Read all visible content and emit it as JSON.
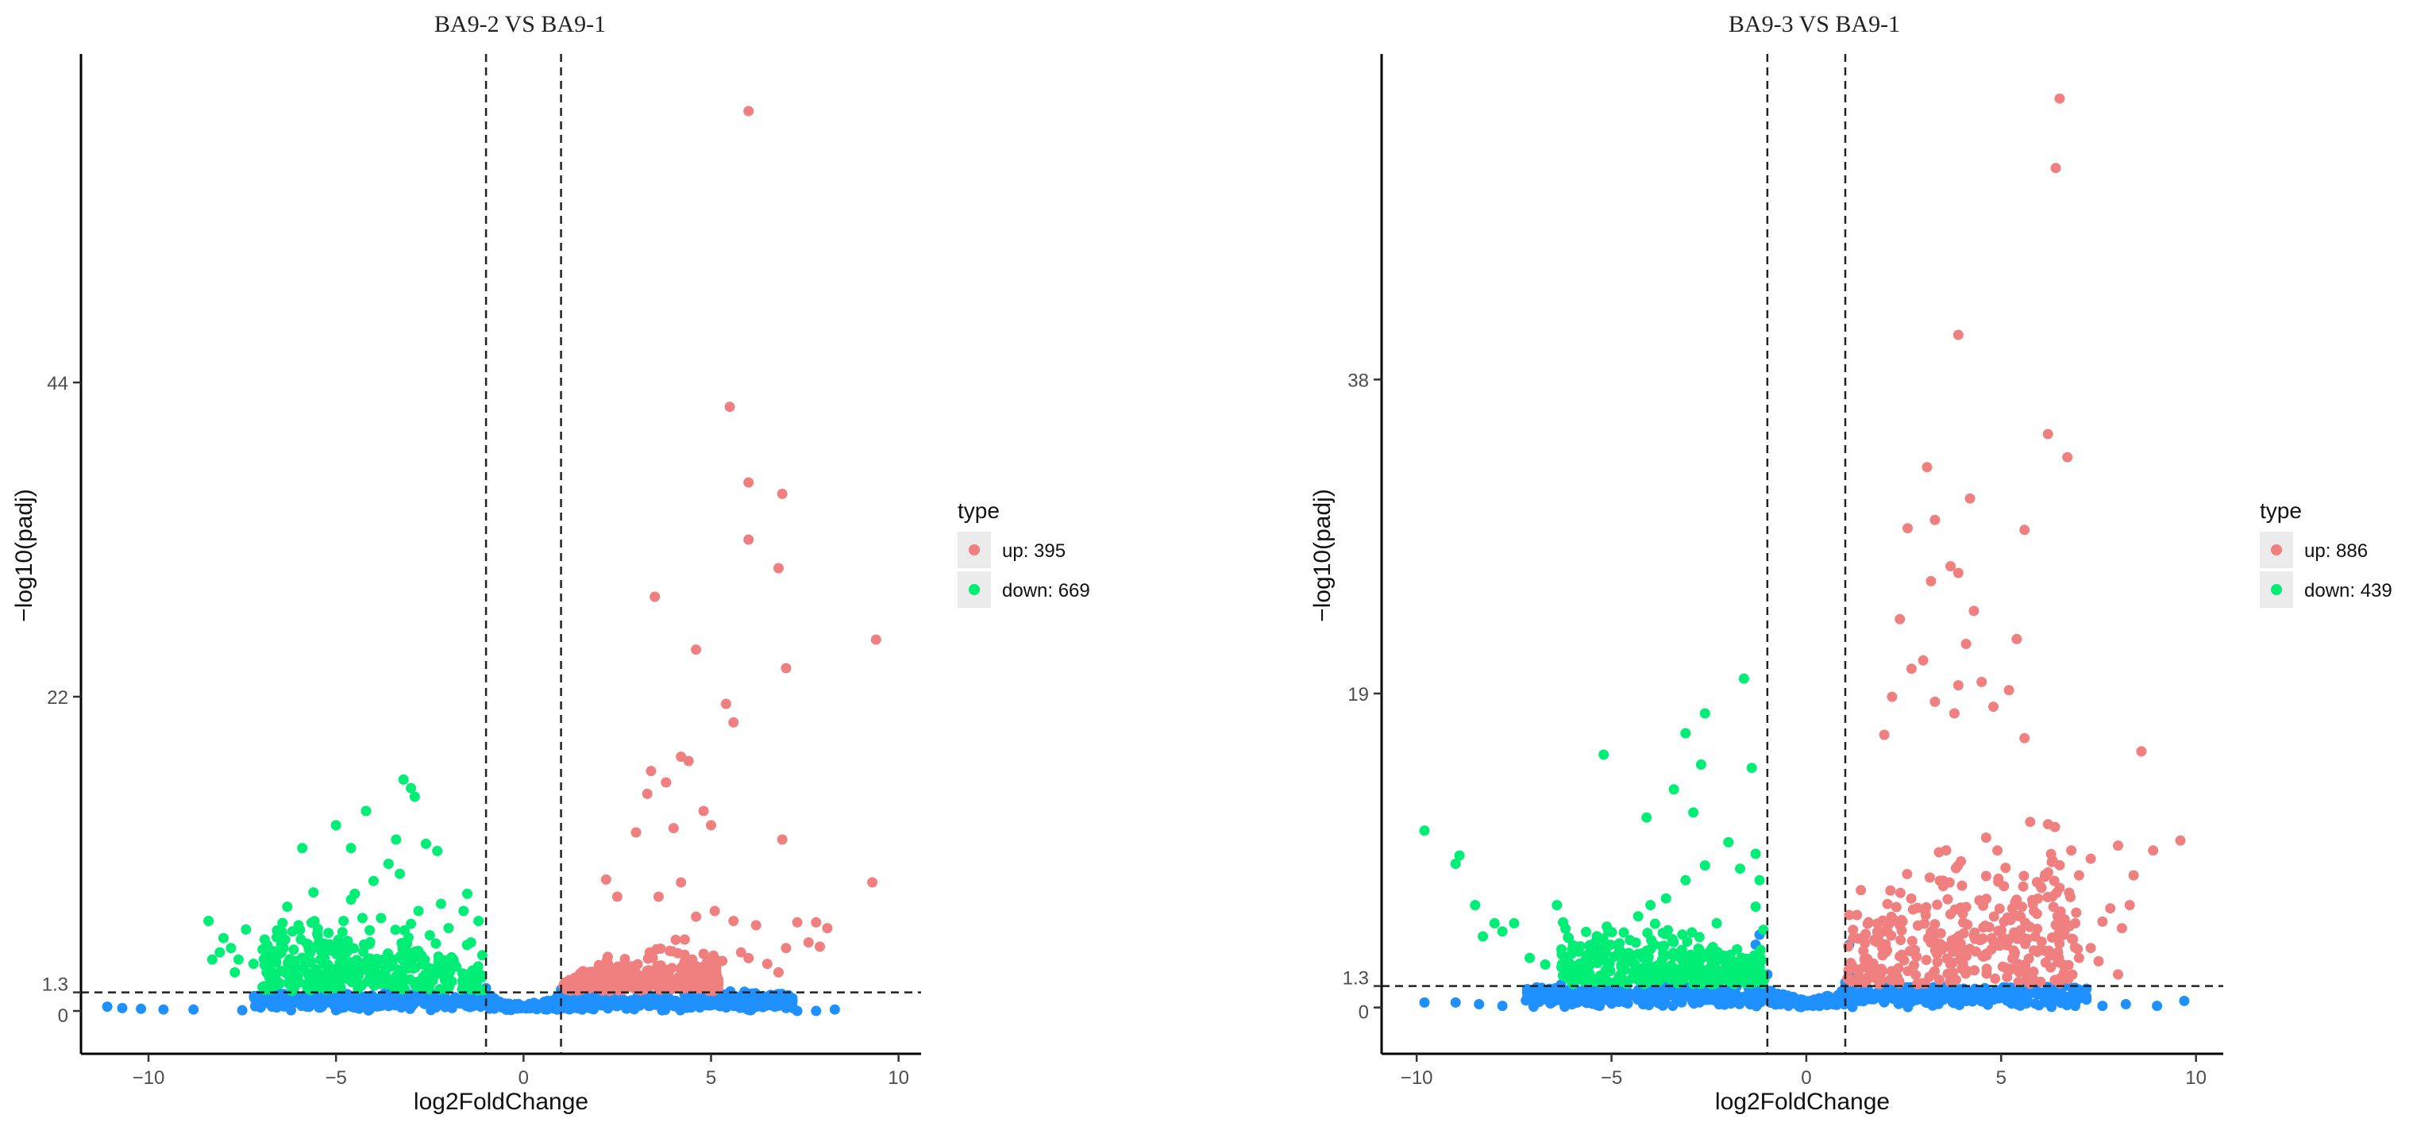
{
  "colors": {
    "up": "#F08080",
    "down": "#00EE76",
    "normal": "#1E90FF",
    "axis": "#000000",
    "legend_key_bg": "#EBEBEB",
    "threshold_line": "#222222"
  },
  "chart_data": [
    {
      "type": "scatter",
      "title": "BA9-2 VS BA9-1",
      "xlabel": "log2FoldChange",
      "ylabel": "−log10(padj)",
      "xlim": [
        -11.8,
        10.6
      ],
      "ylim": [
        -3,
        67
      ],
      "x_ticks": [
        -10,
        -5,
        0,
        5,
        10
      ],
      "x_tick_labels": [
        "−10",
        "−5",
        "0",
        "5",
        "10"
      ],
      "y_ticks": [
        0,
        1.3,
        22,
        44
      ],
      "y_tick_labels": [
        "0",
        "1.3",
        "22",
        "44"
      ],
      "grid": false,
      "thresholds": {
        "x": [
          -1,
          1
        ],
        "y": 1.3
      },
      "legend": {
        "title": "type",
        "position": "right",
        "entries": [
          {
            "key": "up",
            "label": "up: 395"
          },
          {
            "key": "down",
            "label": "down: 669"
          }
        ]
      },
      "series": [
        {
          "name": "up",
          "count": 395,
          "points": [
            [
              6.0,
              63
            ],
            [
              5.5,
              42.3
            ],
            [
              6.0,
              37
            ],
            [
              6.9,
              36.2
            ],
            [
              6.0,
              33
            ],
            [
              6.8,
              31
            ],
            [
              9.4,
              26
            ],
            [
              3.5,
              29
            ],
            [
              4.6,
              25.3
            ],
            [
              7.0,
              24
            ],
            [
              5.4,
              21.5
            ],
            [
              5.6,
              20.2
            ],
            [
              4.4,
              17.5
            ],
            [
              4.2,
              17.8
            ],
            [
              3.8,
              16
            ],
            [
              3.3,
              15.2
            ],
            [
              3.4,
              16.8
            ],
            [
              4.8,
              14
            ],
            [
              5.0,
              13
            ],
            [
              4.0,
              12.8
            ],
            [
              3.0,
              12.5
            ],
            [
              9.3,
              9
            ],
            [
              6.9,
              12
            ],
            [
              2.2,
              9.2
            ],
            [
              2.5,
              8
            ],
            [
              3.6,
              8
            ],
            [
              4.2,
              9
            ],
            [
              4.6,
              6.6
            ],
            [
              5.1,
              7
            ],
            [
              5.6,
              6.3
            ],
            [
              6.2,
              6
            ],
            [
              7.3,
              6.2
            ],
            [
              7.8,
              6.2
            ],
            [
              8.1,
              5.8
            ],
            [
              7.0,
              4.4
            ],
            [
              7.6,
              4.8
            ],
            [
              7.9,
              4.5
            ],
            [
              6.8,
              2.7
            ],
            [
              6.5,
              3.3
            ],
            [
              6.0,
              3.7
            ],
            [
              5.3,
              3.5
            ],
            [
              5.8,
              4.1
            ],
            [
              4.8,
              4.0
            ],
            [
              4.3,
              5.0
            ],
            [
              3.9,
              4.2
            ],
            [
              4.5,
              3.6
            ]
          ]
        },
        {
          "name": "down",
          "count": 669,
          "points": [
            [
              -3.2,
              16.2
            ],
            [
              -3.0,
              15.6
            ],
            [
              -2.9,
              15
            ],
            [
              -4.2,
              14
            ],
            [
              -5.0,
              13
            ],
            [
              -3.4,
              12
            ],
            [
              -2.6,
              11.7
            ],
            [
              -2.3,
              11.2
            ],
            [
              -5.9,
              11.4
            ],
            [
              -4.6,
              11.4
            ],
            [
              -3.6,
              10.3
            ],
            [
              -3.3,
              9.6
            ],
            [
              -4.0,
              9.1
            ],
            [
              -5.6,
              8.3
            ],
            [
              -6.3,
              7.3
            ],
            [
              -4.6,
              7.8
            ],
            [
              -4.5,
              8.2
            ],
            [
              -1.5,
              8.2
            ],
            [
              -1.6,
              7.0
            ],
            [
              -2.2,
              7.5
            ],
            [
              -2.8,
              7.0
            ],
            [
              -8.4,
              6.3
            ],
            [
              -7.4,
              5.7
            ],
            [
              -6.9,
              5.0
            ],
            [
              -6.0,
              6.0
            ],
            [
              -7.8,
              4.4
            ],
            [
              -8.1,
              4.1
            ],
            [
              -8.0,
              5.1
            ],
            [
              -7.6,
              3.6
            ],
            [
              -7.2,
              3.3
            ],
            [
              -6.7,
              2.7
            ],
            [
              -6.9,
              3.2
            ],
            [
              -8.3,
              3.6
            ],
            [
              -5.5,
              5.4
            ],
            [
              -4.8,
              6.3
            ],
            [
              -3.8,
              6.5
            ],
            [
              -3.0,
              6.1
            ],
            [
              -2.5,
              5.3
            ],
            [
              -2.0,
              5.8
            ],
            [
              -1.2,
              6.3
            ],
            [
              -1.4,
              4.8
            ],
            [
              -1.1,
              3.9
            ],
            [
              -5.4,
              4.2
            ],
            [
              -4.2,
              4.6
            ],
            [
              -3.5,
              3.6
            ],
            [
              -6.4,
              4.4
            ],
            [
              -7.7,
              2.7
            ],
            [
              -5.7,
              2.4
            ]
          ]
        },
        {
          "name": "normal",
          "points": [
            [
              -11.1,
              0.3
            ],
            [
              -10.7,
              0.2
            ],
            [
              -10.2,
              0.15
            ],
            [
              -9.6,
              0.1
            ],
            [
              -8.8,
              0.1
            ],
            [
              -7.5,
              0.05
            ],
            [
              -6.2,
              0.05
            ],
            [
              -5.0,
              0.05
            ],
            [
              8.3,
              0.1
            ],
            [
              7.8,
              0.0
            ],
            [
              7.3,
              0.0
            ],
            [
              7.0,
              0.2
            ],
            [
              6.7,
              0.3
            ],
            [
              -1.2,
              1.2
            ],
            [
              -1.0,
              1.6
            ],
            [
              -0.9,
              0.8
            ],
            [
              1.0,
              1.5
            ],
            [
              1.1,
              1.8
            ],
            [
              0.9,
              1.0
            ]
          ]
        }
      ]
    },
    {
      "type": "scatter",
      "title": "BA9-3 VS BA9-1",
      "xlabel": "log2FoldChange",
      "ylabel": "−log10(padj)",
      "xlim": [
        -10.9,
        10.7
      ],
      "ylim": [
        -2.8,
        57.7
      ],
      "x_ticks": [
        -10,
        -5,
        0,
        5,
        10
      ],
      "x_tick_labels": [
        "−10",
        "−5",
        "0",
        "5",
        "10"
      ],
      "y_ticks": [
        0,
        1.3,
        19,
        38
      ],
      "y_tick_labels": [
        "0",
        "1.3",
        "19",
        "38"
      ],
      "grid": false,
      "thresholds": {
        "x": [
          -1,
          1
        ],
        "y": 1.3
      },
      "legend": {
        "title": "type",
        "position": "right",
        "entries": [
          {
            "key": "up",
            "label": "up: 886"
          },
          {
            "key": "down",
            "label": "down: 439"
          }
        ]
      },
      "series": [
        {
          "name": "up",
          "count": 886,
          "points": [
            [
              6.5,
              55
            ],
            [
              6.4,
              50.8
            ],
            [
              3.9,
              40.7
            ],
            [
              6.2,
              34.7
            ],
            [
              6.7,
              33.3
            ],
            [
              3.1,
              32.7
            ],
            [
              4.2,
              30.8
            ],
            [
              3.3,
              29.5
            ],
            [
              5.6,
              28.9
            ],
            [
              2.6,
              29.0
            ],
            [
              3.7,
              26.7
            ],
            [
              3.9,
              26.3
            ],
            [
              3.2,
              25.8
            ],
            [
              2.4,
              23.5
            ],
            [
              4.3,
              24.0
            ],
            [
              5.4,
              22.3
            ],
            [
              4.1,
              22.0
            ],
            [
              3.0,
              21.0
            ],
            [
              2.7,
              20.5
            ],
            [
              4.5,
              19.7
            ],
            [
              3.9,
              19.5
            ],
            [
              5.2,
              19.2
            ],
            [
              2.2,
              18.8
            ],
            [
              3.3,
              18.5
            ],
            [
              3.8,
              17.8
            ],
            [
              4.8,
              18.2
            ],
            [
              8.6,
              15.5
            ],
            [
              2.0,
              16.5
            ],
            [
              5.6,
              16.3
            ],
            [
              9.6,
              10.1
            ],
            [
              8.9,
              9.5
            ],
            [
              8.0,
              9.8
            ],
            [
              8.4,
              8.0
            ],
            [
              6.8,
              9.5
            ],
            [
              7.3,
              9.0
            ],
            [
              7.0,
              8.0
            ],
            [
              6.3,
              8.8
            ],
            [
              7.8,
              6.0
            ],
            [
              8.3,
              6.2
            ],
            [
              8.1,
              4.8
            ],
            [
              7.6,
              5.2
            ],
            [
              6.9,
              5.1
            ],
            [
              7.3,
              3.6
            ],
            [
              7.0,
              3.0
            ],
            [
              7.5,
              2.8
            ],
            [
              8.0,
              2.0
            ],
            [
              6.4,
              5.0
            ],
            [
              5.8,
              6.5
            ],
            [
              5.5,
              5.5
            ],
            [
              1.3,
              5.6
            ],
            [
              1.4,
              7.1
            ],
            [
              1.1,
              5.6
            ],
            [
              1.2,
              4.7
            ]
          ]
        },
        {
          "name": "down",
          "count": 439,
          "points": [
            [
              -1.6,
              19.9
            ],
            [
              -2.6,
              17.8
            ],
            [
              -3.1,
              16.6
            ],
            [
              -5.2,
              15.3
            ],
            [
              -2.7,
              14.7
            ],
            [
              -1.4,
              14.5
            ],
            [
              -3.4,
              13.2
            ],
            [
              -4.1,
              11.5
            ],
            [
              -2.9,
              11.8
            ],
            [
              -9.8,
              10.7
            ],
            [
              -2.0,
              10.0
            ],
            [
              -8.9,
              9.2
            ],
            [
              -9.0,
              8.7
            ],
            [
              -2.6,
              8.6
            ],
            [
              -3.1,
              7.7
            ],
            [
              -3.6,
              6.6
            ],
            [
              -8.5,
              6.2
            ],
            [
              -6.4,
              6.2
            ],
            [
              -4.0,
              6.2
            ],
            [
              -1.3,
              9.3
            ],
            [
              -1.7,
              8.4
            ],
            [
              -1.2,
              7.7
            ],
            [
              -8.0,
              5.1
            ],
            [
              -7.5,
              5.1
            ],
            [
              -7.8,
              4.6
            ],
            [
              -8.3,
              4.3
            ],
            [
              -6.1,
              4.2
            ],
            [
              -5.4,
              4.0
            ],
            [
              -5.8,
              3.7
            ],
            [
              -4.8,
              3.5
            ],
            [
              -3.7,
              2.9
            ],
            [
              -7.1,
              3.0
            ],
            [
              -6.7,
              2.6
            ],
            [
              -2.3,
              5.1
            ],
            [
              -4.4,
              2.6
            ],
            [
              -1.3,
              6.1
            ],
            [
              -1.1,
              4.7
            ]
          ]
        },
        {
          "name": "normal",
          "points": [
            [
              -9.8,
              0.3
            ],
            [
              -9.0,
              0.3
            ],
            [
              -8.4,
              0.2
            ],
            [
              -7.8,
              0.1
            ],
            [
              -7.0,
              0.05
            ],
            [
              -6.2,
              0.05
            ],
            [
              9.7,
              0.4
            ],
            [
              9.0,
              0.1
            ],
            [
              8.2,
              0.2
            ],
            [
              7.6,
              0.1
            ],
            [
              6.9,
              0.1
            ],
            [
              -1.2,
              1.5
            ],
            [
              -1.0,
              2.0
            ],
            [
              -0.9,
              1.0
            ],
            [
              -1.3,
              3.8
            ],
            [
              -1.2,
              4.4
            ],
            [
              1.1,
              2.0
            ],
            [
              1.0,
              1.5
            ],
            [
              0.9,
              0.9
            ],
            [
              1.1,
              3.8
            ]
          ]
        }
      ]
    }
  ]
}
